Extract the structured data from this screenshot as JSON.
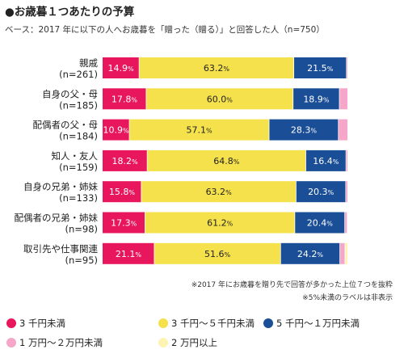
{
  "title": "●お歳暮１つあたりの予算",
  "subtitle": "ベース：2017 年に以下の人へお歳暮を「贈った（贈る）」と回答した人（n=750）",
  "notes": [
    "※2017 年にお歳暮を贈り先で回答が多かった上位７つを抜粋",
    "※5%未満のラベルは非表示"
  ],
  "colors": {
    "s1": "#e8175d",
    "s2": "#f5e14b",
    "s3": "#1a4e96",
    "s4": "#f5a6c9",
    "s5": "#fdf4b4"
  },
  "chart_data": {
    "type": "bar",
    "orientation": "horizontal",
    "stacked": "100%",
    "categories": [
      [
        "親戚",
        "(n=261)"
      ],
      [
        "自身の父・母",
        "(n=185)"
      ],
      [
        "配偶者の父・母",
        "(n=184)"
      ],
      [
        "知人・友人",
        "(n=159)"
      ],
      [
        "自身の兄弟・姉妹",
        "(n=133)"
      ],
      [
        "配偶者の兄弟・姉妹",
        "(n=98)"
      ],
      [
        "取引先や仕事関連",
        "(n=95)"
      ]
    ],
    "series": [
      {
        "name": "3 千円未満",
        "values": [
          14.9,
          17.8,
          10.9,
          18.2,
          15.8,
          17.3,
          21.1
        ]
      },
      {
        "name": "3 千円～５千円未満",
        "values": [
          63.2,
          60.0,
          57.1,
          64.8,
          63.2,
          61.2,
          51.6
        ]
      },
      {
        "name": "5 千円～１万円未満",
        "values": [
          21.5,
          18.9,
          28.3,
          16.4,
          20.3,
          20.4,
          24.2
        ]
      },
      {
        "name": "1 万円～２万円未満",
        "values": [
          0.4,
          3.3,
          3.7,
          0.6,
          0.7,
          1.0,
          2.1
        ]
      },
      {
        "name": "2 万円以上",
        "values": [
          0.0,
          0.0,
          0.0,
          0.0,
          0.0,
          0.1,
          1.0
        ]
      }
    ],
    "xlim": [
      0,
      100
    ],
    "label_threshold": 5,
    "legend": "bottom"
  }
}
